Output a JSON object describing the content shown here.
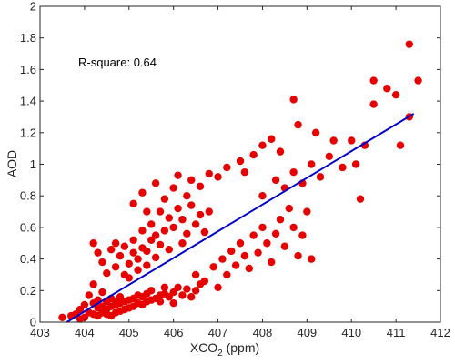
{
  "chart_data": {
    "type": "scatter",
    "title": "",
    "xlabel": {
      "main": "XCO",
      "sub": "2",
      "tail": " (ppm)"
    },
    "ylabel": "AOD",
    "xlim": [
      403,
      412
    ],
    "ylim": [
      0,
      2
    ],
    "xticks": [
      "403",
      "404",
      "405",
      "406",
      "407",
      "408",
      "409",
      "410",
      "411",
      "412"
    ],
    "yticks": [
      "0",
      "0.2",
      "0.4",
      "0.6",
      "0.8",
      "1",
      "1.2",
      "1.4",
      "1.6",
      "1.8",
      "2"
    ],
    "grid": false,
    "annotation": "R-square: 0.64",
    "colors": {
      "points": "#e60000",
      "fit_line": "#0000cc",
      "axes": "#262626"
    },
    "fit_line": {
      "x": [
        403.6,
        411.4
      ],
      "y": [
        0.0,
        1.32
      ]
    },
    "points": [
      {
        "x": 403.5,
        "y": 0.03
      },
      {
        "x": 403.7,
        "y": 0.04
      },
      {
        "x": 403.8,
        "y": 0.05
      },
      {
        "x": 403.9,
        "y": 0.02
      },
      {
        "x": 403.9,
        "y": 0.08
      },
      {
        "x": 404.0,
        "y": 0.03
      },
      {
        "x": 404.0,
        "y": 0.11
      },
      {
        "x": 404.1,
        "y": 0.06
      },
      {
        "x": 404.1,
        "y": 0.17
      },
      {
        "x": 404.2,
        "y": 0.05
      },
      {
        "x": 404.2,
        "y": 0.12
      },
      {
        "x": 404.2,
        "y": 0.24
      },
      {
        "x": 404.3,
        "y": 0.04
      },
      {
        "x": 404.3,
        "y": 0.09
      },
      {
        "x": 404.3,
        "y": 0.14
      },
      {
        "x": 404.4,
        "y": 0.06
      },
      {
        "x": 404.4,
        "y": 0.1
      },
      {
        "x": 404.4,
        "y": 0.19
      },
      {
        "x": 404.5,
        "y": 0.05
      },
      {
        "x": 404.5,
        "y": 0.08
      },
      {
        "x": 404.5,
        "y": 0.13
      },
      {
        "x": 404.6,
        "y": 0.04
      },
      {
        "x": 404.6,
        "y": 0.1
      },
      {
        "x": 404.6,
        "y": 0.15
      },
      {
        "x": 404.7,
        "y": 0.06
      },
      {
        "x": 404.7,
        "y": 0.11
      },
      {
        "x": 404.7,
        "y": 0.13
      },
      {
        "x": 404.8,
        "y": 0.07
      },
      {
        "x": 404.8,
        "y": 0.12
      },
      {
        "x": 404.8,
        "y": 0.16
      },
      {
        "x": 404.9,
        "y": 0.08
      },
      {
        "x": 404.9,
        "y": 0.13
      },
      {
        "x": 405.0,
        "y": 0.09
      },
      {
        "x": 405.0,
        "y": 0.14
      },
      {
        "x": 405.1,
        "y": 0.1
      },
      {
        "x": 405.1,
        "y": 0.15
      },
      {
        "x": 405.2,
        "y": 0.12
      },
      {
        "x": 405.2,
        "y": 0.17
      },
      {
        "x": 405.3,
        "y": 0.11
      },
      {
        "x": 405.3,
        "y": 0.16
      },
      {
        "x": 405.4,
        "y": 0.13
      },
      {
        "x": 405.4,
        "y": 0.18
      },
      {
        "x": 405.5,
        "y": 0.14
      },
      {
        "x": 405.5,
        "y": 0.2
      },
      {
        "x": 405.6,
        "y": 0.15
      },
      {
        "x": 405.7,
        "y": 0.17
      },
      {
        "x": 405.7,
        "y": 0.13
      },
      {
        "x": 405.8,
        "y": 0.18
      },
      {
        "x": 405.8,
        "y": 0.22
      },
      {
        "x": 405.9,
        "y": 0.16
      },
      {
        "x": 406.0,
        "y": 0.19
      },
      {
        "x": 406.0,
        "y": 0.12
      },
      {
        "x": 406.1,
        "y": 0.22
      },
      {
        "x": 406.2,
        "y": 0.17
      },
      {
        "x": 406.3,
        "y": 0.21
      },
      {
        "x": 406.4,
        "y": 0.16
      },
      {
        "x": 406.5,
        "y": 0.2
      },
      {
        "x": 406.6,
        "y": 0.24
      },
      {
        "x": 404.2,
        "y": 0.5
      },
      {
        "x": 404.3,
        "y": 0.44
      },
      {
        "x": 404.4,
        "y": 0.38
      },
      {
        "x": 404.5,
        "y": 0.31
      },
      {
        "x": 404.6,
        "y": 0.46
      },
      {
        "x": 404.7,
        "y": 0.35
      },
      {
        "x": 404.7,
        "y": 0.5
      },
      {
        "x": 404.8,
        "y": 0.42
      },
      {
        "x": 404.9,
        "y": 0.3
      },
      {
        "x": 404.9,
        "y": 0.48
      },
      {
        "x": 405.0,
        "y": 0.37
      },
      {
        "x": 405.0,
        "y": 0.28
      },
      {
        "x": 405.1,
        "y": 0.44
      },
      {
        "x": 405.1,
        "y": 0.52
      },
      {
        "x": 405.2,
        "y": 0.33
      },
      {
        "x": 405.2,
        "y": 0.4
      },
      {
        "x": 405.3,
        "y": 0.47
      },
      {
        "x": 405.3,
        "y": 0.58
      },
      {
        "x": 405.4,
        "y": 0.36
      },
      {
        "x": 405.4,
        "y": 0.45
      },
      {
        "x": 405.5,
        "y": 0.52
      },
      {
        "x": 405.5,
        "y": 0.62
      },
      {
        "x": 405.6,
        "y": 0.41
      },
      {
        "x": 405.6,
        "y": 0.55
      },
      {
        "x": 405.7,
        "y": 0.49
      },
      {
        "x": 405.7,
        "y": 0.7
      },
      {
        "x": 405.8,
        "y": 0.58
      },
      {
        "x": 405.9,
        "y": 0.66
      },
      {
        "x": 405.9,
        "y": 0.46
      },
      {
        "x": 406.0,
        "y": 0.6
      },
      {
        "x": 406.1,
        "y": 0.72
      },
      {
        "x": 406.2,
        "y": 0.5
      },
      {
        "x": 406.2,
        "y": 0.65
      },
      {
        "x": 406.3,
        "y": 0.56
      },
      {
        "x": 406.4,
        "y": 0.74
      },
      {
        "x": 406.5,
        "y": 0.62
      },
      {
        "x": 406.6,
        "y": 0.68
      },
      {
        "x": 406.7,
        "y": 0.57
      },
      {
        "x": 406.8,
        "y": 0.7
      },
      {
        "x": 405.1,
        "y": 0.75
      },
      {
        "x": 405.3,
        "y": 0.82
      },
      {
        "x": 405.4,
        "y": 0.7
      },
      {
        "x": 405.6,
        "y": 0.88
      },
      {
        "x": 405.8,
        "y": 0.78
      },
      {
        "x": 406.0,
        "y": 0.85
      },
      {
        "x": 406.1,
        "y": 0.93
      },
      {
        "x": 406.3,
        "y": 0.8
      },
      {
        "x": 406.4,
        "y": 0.9
      },
      {
        "x": 406.6,
        "y": 0.86
      },
      {
        "x": 406.8,
        "y": 0.94
      },
      {
        "x": 407.0,
        "y": 0.92
      },
      {
        "x": 407.2,
        "y": 0.98
      },
      {
        "x": 407.5,
        "y": 1.02
      },
      {
        "x": 407.6,
        "y": 0.95
      },
      {
        "x": 407.8,
        "y": 1.06
      },
      {
        "x": 408.0,
        "y": 1.12
      },
      {
        "x": 408.2,
        "y": 1.16
      },
      {
        "x": 408.4,
        "y": 1.08
      },
      {
        "x": 406.5,
        "y": 0.3
      },
      {
        "x": 406.7,
        "y": 0.26
      },
      {
        "x": 406.9,
        "y": 0.35
      },
      {
        "x": 407.0,
        "y": 0.22
      },
      {
        "x": 407.1,
        "y": 0.4
      },
      {
        "x": 407.2,
        "y": 0.3
      },
      {
        "x": 407.3,
        "y": 0.45
      },
      {
        "x": 407.4,
        "y": 0.36
      },
      {
        "x": 407.5,
        "y": 0.5
      },
      {
        "x": 407.6,
        "y": 0.42
      },
      {
        "x": 407.7,
        "y": 0.34
      },
      {
        "x": 407.8,
        "y": 0.55
      },
      {
        "x": 407.9,
        "y": 0.44
      },
      {
        "x": 408.0,
        "y": 0.6
      },
      {
        "x": 408.1,
        "y": 0.5
      },
      {
        "x": 408.2,
        "y": 0.38
      },
      {
        "x": 408.3,
        "y": 0.56
      },
      {
        "x": 408.4,
        "y": 0.65
      },
      {
        "x": 408.5,
        "y": 0.48
      },
      {
        "x": 408.6,
        "y": 0.72
      },
      {
        "x": 408.7,
        "y": 0.6
      },
      {
        "x": 408.8,
        "y": 0.42
      },
      {
        "x": 408.9,
        "y": 0.55
      },
      {
        "x": 409.0,
        "y": 0.7
      },
      {
        "x": 409.1,
        "y": 0.4
      },
      {
        "x": 408.0,
        "y": 0.8
      },
      {
        "x": 408.3,
        "y": 0.9
      },
      {
        "x": 408.5,
        "y": 0.85
      },
      {
        "x": 408.7,
        "y": 0.95
      },
      {
        "x": 408.9,
        "y": 0.88
      },
      {
        "x": 409.1,
        "y": 1.0
      },
      {
        "x": 409.3,
        "y": 0.92
      },
      {
        "x": 409.5,
        "y": 1.05
      },
      {
        "x": 409.8,
        "y": 0.98
      },
      {
        "x": 410.1,
        "y": 1.0
      },
      {
        "x": 410.2,
        "y": 0.78
      },
      {
        "x": 410.3,
        "y": 1.12
      },
      {
        "x": 409.6,
        "y": 1.15
      },
      {
        "x": 408.8,
        "y": 1.25
      },
      {
        "x": 408.7,
        "y": 1.41
      },
      {
        "x": 409.2,
        "y": 1.2
      },
      {
        "x": 410.0,
        "y": 1.15
      },
      {
        "x": 410.5,
        "y": 1.38
      },
      {
        "x": 410.5,
        "y": 1.53
      },
      {
        "x": 410.8,
        "y": 1.48
      },
      {
        "x": 411.0,
        "y": 1.44
      },
      {
        "x": 411.1,
        "y": 1.12
      },
      {
        "x": 411.3,
        "y": 1.3
      },
      {
        "x": 411.3,
        "y": 1.76
      },
      {
        "x": 411.5,
        "y": 1.53
      }
    ]
  }
}
